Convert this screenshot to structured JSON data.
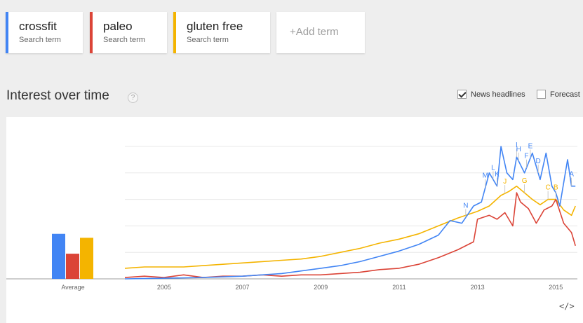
{
  "terms": [
    {
      "name": "crossfit",
      "sub": "Search term",
      "color": "#4285f4"
    },
    {
      "name": "paleo",
      "sub": "Search term",
      "color": "#db4437"
    },
    {
      "name": "gluten free",
      "sub": "Search term",
      "color": "#f4b400"
    }
  ],
  "add_term": "+Add term",
  "section": {
    "title": "Interest over time",
    "help": "?"
  },
  "options": {
    "news_headlines": "News headlines",
    "news_checked": true,
    "forecast": "Forecast",
    "forecast_checked": false
  },
  "embed_icon": "</>",
  "chart_data": {
    "type": "line",
    "average_bars": {
      "label": "Average",
      "values": [
        34,
        19,
        31
      ]
    },
    "x_ticks": [
      "2005",
      "2007",
      "2009",
      "2011",
      "2013",
      "2015"
    ],
    "ylim": [
      0,
      100
    ],
    "grid": true,
    "series": [
      {
        "name": "crossfit",
        "color": "#4285f4",
        "x": [
          2004.0,
          2005.0,
          2006.0,
          2007.0,
          2007.5,
          2008.0,
          2008.5,
          2009.0,
          2009.5,
          2010.0,
          2010.5,
          2011.0,
          2011.5,
          2012.0,
          2012.3,
          2012.6,
          2012.9,
          2013.1,
          2013.3,
          2013.5,
          2013.6,
          2013.75,
          2013.9,
          2014.0,
          2014.2,
          2014.4,
          2014.6,
          2014.75,
          2014.9,
          2015.0,
          2015.1,
          2015.3,
          2015.4,
          2015.5
        ],
        "y": [
          0,
          0.5,
          1,
          2,
          3,
          4,
          6,
          8,
          10,
          13,
          17,
          21,
          26,
          33,
          44,
          42,
          55,
          58,
          80,
          70,
          100,
          80,
          75,
          92,
          80,
          95,
          75,
          95,
          70,
          65,
          55,
          90,
          70,
          70
        ]
      },
      {
        "name": "paleo",
        "color": "#db4437",
        "x": [
          2004.0,
          2004.5,
          2005.0,
          2005.5,
          2006.0,
          2006.5,
          2007.0,
          2007.5,
          2008.0,
          2008.5,
          2009.0,
          2009.5,
          2010.0,
          2010.5,
          2011.0,
          2011.5,
          2012.0,
          2012.5,
          2012.9,
          2013.0,
          2013.3,
          2013.5,
          2013.7,
          2013.9,
          2014.0,
          2014.1,
          2014.3,
          2014.5,
          2014.7,
          2014.9,
          2015.0,
          2015.2,
          2015.4,
          2015.5
        ],
        "y": [
          1,
          2,
          1,
          3,
          1,
          2,
          2,
          3,
          2,
          3,
          3,
          4,
          5,
          7,
          8,
          11,
          16,
          22,
          28,
          45,
          48,
          45,
          50,
          40,
          65,
          58,
          53,
          42,
          52,
          55,
          60,
          42,
          35,
          25
        ]
      },
      {
        "name": "gluten free",
        "color": "#f4b400",
        "x": [
          2004.0,
          2004.5,
          2005.0,
          2005.5,
          2006.0,
          2006.5,
          2007.0,
          2007.5,
          2008.0,
          2008.5,
          2009.0,
          2009.5,
          2010.0,
          2010.5,
          2011.0,
          2011.5,
          2012.0,
          2012.5,
          2013.0,
          2013.3,
          2013.6,
          2013.8,
          2014.0,
          2014.2,
          2014.4,
          2014.6,
          2014.8,
          2015.0,
          2015.2,
          2015.4,
          2015.5
        ],
        "y": [
          8,
          9,
          9,
          9,
          10,
          11,
          12,
          13,
          14,
          15,
          17,
          20,
          23,
          27,
          30,
          34,
          40,
          46,
          51,
          55,
          63,
          66,
          70,
          65,
          60,
          56,
          60,
          60,
          52,
          48,
          55
        ]
      }
    ],
    "annotations": [
      {
        "text": "N",
        "x": 2012.7,
        "color": "#4285f4"
      },
      {
        "text": "M",
        "x": 2013.2,
        "color": "#4285f4"
      },
      {
        "text": "L",
        "x": 2013.4,
        "color": "#4285f4"
      },
      {
        "text": "K",
        "x": 2013.5,
        "color": "#4285f4"
      },
      {
        "text": "J",
        "x": 2013.7,
        "color": "#f4b400"
      },
      {
        "text": "I",
        "x": 2014.0,
        "color": "#4285f4"
      },
      {
        "text": "H",
        "x": 2014.05,
        "color": "#4285f4"
      },
      {
        "text": "G",
        "x": 2014.2,
        "color": "#f4b400"
      },
      {
        "text": "F",
        "x": 2014.25,
        "color": "#4285f4"
      },
      {
        "text": "E",
        "x": 2014.35,
        "color": "#4285f4"
      },
      {
        "text": "D",
        "x": 2014.55,
        "color": "#4285f4"
      },
      {
        "text": "C",
        "x": 2014.8,
        "color": "#f4b400"
      },
      {
        "text": "B",
        "x": 2015.0,
        "color": "#f4b400"
      },
      {
        "text": "A",
        "x": 2015.4,
        "color": "#4285f4"
      }
    ]
  }
}
